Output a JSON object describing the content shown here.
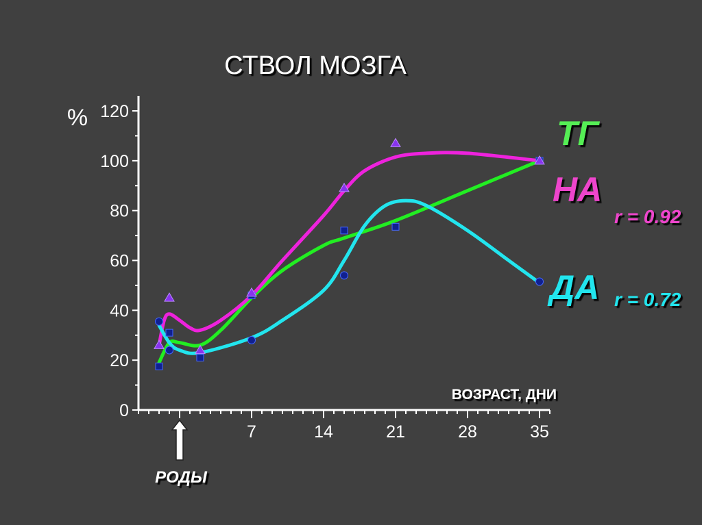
{
  "chart_data": {
    "type": "line",
    "title": "СТВОЛ МОЗГА",
    "ylabel": "%",
    "xlabel": "ВОЗРАСТ, ДНИ",
    "annotation": "РОДЫ",
    "annotation_x": 0,
    "xlim": [
      -4,
      36
    ],
    "ylim": [
      0,
      120
    ],
    "yticks": [
      "0",
      "20",
      "40",
      "60",
      "80",
      "100",
      "120"
    ],
    "xticks": [
      "7",
      "14",
      "21",
      "28",
      "35"
    ],
    "grid": false,
    "series": [
      {
        "name": "ТГ",
        "color": "#22ee22",
        "marker": "square",
        "points": {
          "x": [
            -2,
            -1,
            2,
            7,
            16,
            21,
            35
          ],
          "y": [
            17.5,
            31,
            21,
            46,
            72,
            73.5,
            100
          ]
        },
        "fit": {
          "x": [
            -2,
            -1,
            0,
            2,
            4,
            7,
            10,
            14,
            16,
            21,
            28,
            35
          ],
          "y": [
            19,
            27,
            27,
            26,
            32,
            45,
            56,
            66,
            69,
            76,
            88,
            100
          ]
        },
        "r": ""
      },
      {
        "name": "НА",
        "color": "#ee22dd",
        "marker": "triangle",
        "points": {
          "x": [
            -2,
            -1,
            2,
            7,
            16,
            21,
            35
          ],
          "y": [
            26,
            45,
            24,
            47,
            89,
            107,
            100
          ]
        },
        "fit": {
          "x": [
            -2,
            -1.5,
            -1,
            0,
            1,
            2,
            4,
            7,
            10,
            14,
            16,
            18,
            21,
            24,
            28,
            35
          ],
          "y": [
            26,
            36,
            38.5,
            36,
            33,
            32,
            36,
            46,
            60,
            78,
            88,
            96,
            101.5,
            103,
            103,
            100
          ]
        },
        "r": "r = 0.92"
      },
      {
        "name": "ДА",
        "color": "#22e5ee",
        "marker": "circle",
        "points": {
          "x": [
            -2,
            -1,
            7,
            16,
            35
          ],
          "y": [
            35.5,
            24,
            28,
            54,
            51.5
          ]
        },
        "fit": {
          "x": [
            -2,
            -1,
            0,
            2,
            7,
            10,
            14,
            16,
            18,
            20,
            22,
            24,
            28,
            32,
            35
          ],
          "y": [
            34,
            27,
            24,
            23,
            29,
            36,
            48,
            60,
            74,
            82,
            84,
            82,
            72,
            60,
            51
          ]
        },
        "r": "r = 0.72"
      }
    ]
  }
}
